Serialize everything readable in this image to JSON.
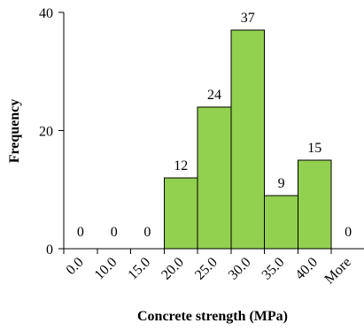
{
  "chart_data": {
    "type": "bar",
    "title": "",
    "xlabel": "Concrete strength  (MPa)",
    "ylabel": "Frequency",
    "categories": [
      "0.0",
      "10.0",
      "15.0",
      "20.0",
      "25.0",
      "30.0",
      "35.0",
      "40.0",
      "More"
    ],
    "values": [
      0,
      0,
      0,
      12,
      24,
      37,
      9,
      15,
      0
    ],
    "yticks": [
      0,
      20,
      40
    ],
    "ylim": [
      0,
      40
    ],
    "grid": false,
    "legend": "none",
    "colors": {
      "bar_fill": "#92D050",
      "bar_stroke": "#000000"
    }
  }
}
